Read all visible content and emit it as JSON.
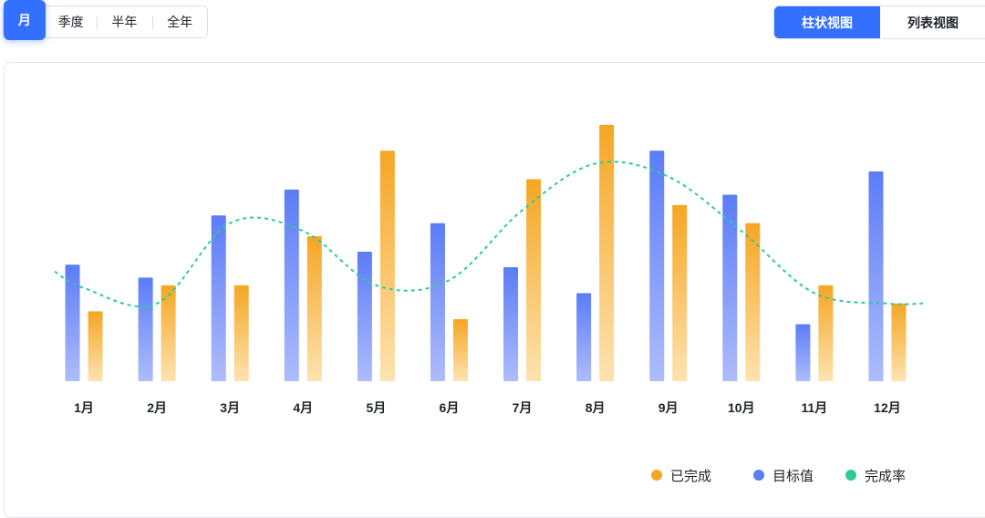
{
  "period_tabs": [
    {
      "label": "月",
      "active": true
    },
    {
      "label": "季度",
      "active": false
    },
    {
      "label": "半年",
      "active": false
    },
    {
      "label": "全年",
      "active": false
    }
  ],
  "view_tabs": [
    {
      "label": "柱状视图",
      "active": true
    },
    {
      "label": "列表视图",
      "active": false
    }
  ],
  "colors": {
    "accent": "#3370ff",
    "completed": "#f5a623",
    "target": "#5b7cf7",
    "rate": "#2ecb96"
  },
  "chart_data": {
    "type": "bar",
    "categories": [
      "1月",
      "2月",
      "3月",
      "4月",
      "5月",
      "6月",
      "7月",
      "8月",
      "9月",
      "10月",
      "11月",
      "12月"
    ],
    "ylim": [
      0,
      100
    ],
    "series": [
      {
        "name": "目标值",
        "type": "bar",
        "color": "#5b7cf7",
        "values": [
          45,
          40,
          64,
          74,
          50,
          61,
          44,
          34,
          89,
          72,
          22,
          81
        ]
      },
      {
        "name": "已完成",
        "type": "bar",
        "color": "#f5a623",
        "values": [
          27,
          37,
          37,
          56,
          89,
          24,
          78,
          99,
          68,
          61,
          37,
          30
        ]
      },
      {
        "name": "完成率",
        "type": "line",
        "style": "dashed-smooth",
        "color": "#2ecb96",
        "values": [
          36,
          30,
          61,
          58,
          37,
          39,
          66,
          84,
          79,
          58,
          34,
          30
        ]
      }
    ],
    "legend": [
      "已完成",
      "目标值",
      "完成率"
    ],
    "legend_position": "bottom-right",
    "grid": false
  }
}
